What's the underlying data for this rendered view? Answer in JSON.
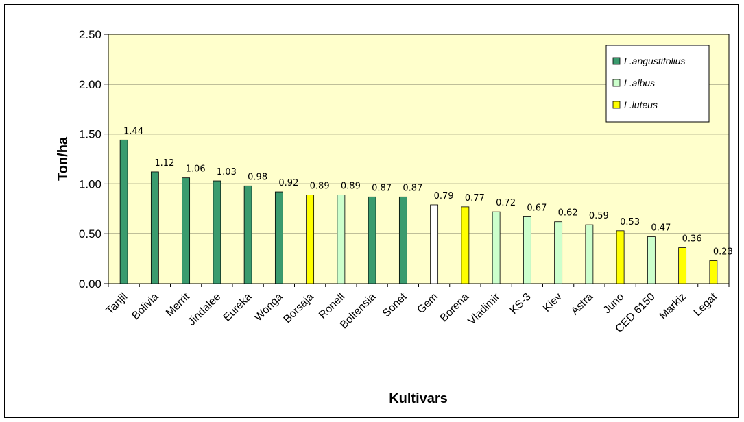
{
  "chart_data": {
    "type": "bar",
    "title": "",
    "xlabel": "Kultivars",
    "ylabel": "Ton/ha",
    "ylim": [
      0,
      2.5
    ],
    "yticks": [
      "0.00",
      "0.50",
      "1.00",
      "1.50",
      "2.00",
      "2.50"
    ],
    "grid": true,
    "legend_position": "top-right",
    "plot_background": "#FFFFCC",
    "categories": [
      "Tanjil",
      "Bolivia",
      "Merrit",
      "Jindalee",
      "Eureka",
      "Wonga",
      "Borsaja",
      "Ronell",
      "Boltensia",
      "Sonet",
      "Gem",
      "Borena",
      "Vladimir",
      "KS-3",
      "Kiev",
      "Astra",
      "Juno",
      "CED 6150",
      "Markiz",
      "Legat"
    ],
    "values": [
      1.44,
      1.12,
      1.06,
      1.03,
      0.98,
      0.92,
      0.89,
      0.89,
      0.87,
      0.87,
      0.79,
      0.77,
      0.72,
      0.67,
      0.62,
      0.59,
      0.53,
      0.47,
      0.36,
      0.23
    ],
    "data_labels": [
      "1.44",
      "1.12",
      "1.06",
      "1.03",
      "0.98",
      "0.92",
      "0.89",
      "0.89",
      "0.87",
      "0.87",
      "0.79",
      "0.77",
      "0.72",
      "0.67",
      "0.62",
      "0.59",
      "0.53",
      "0.47",
      "0.36",
      "0.23"
    ],
    "bar_species": [
      "ang",
      "ang",
      "ang",
      "ang",
      "ang",
      "ang",
      "lut",
      "alb",
      "ang",
      "ang",
      "white",
      "lut",
      "alb",
      "alb",
      "alb",
      "alb",
      "lut",
      "alb",
      "lut",
      "lut"
    ],
    "species_colors": {
      "ang": "#3A9B6E",
      "alb": "#CCFFCC",
      "lut": "#FFFF00",
      "white": "#FFFFFF"
    },
    "legend": [
      {
        "key": "ang",
        "label": "L.angustifolius"
      },
      {
        "key": "alb",
        "label": "L.albus"
      },
      {
        "key": "lut",
        "label": "L.luteus"
      }
    ]
  }
}
